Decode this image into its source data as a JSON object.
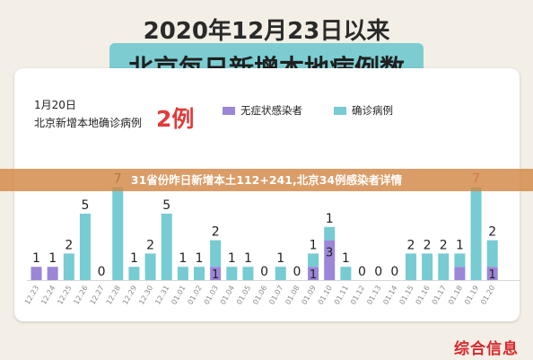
{
  "header": {
    "title_line1": "2020年12月23日以来",
    "title_line2": "北京每日新增本地病例数"
  },
  "info": {
    "date": "1月20日",
    "label": "北京新增本地确诊病例",
    "count": "2例"
  },
  "legend": {
    "asymptomatic": "无症状感染者",
    "confirmed": "确诊病例"
  },
  "colors": {
    "asymptomatic": "#9b86d8",
    "confirmed": "#77cbd2",
    "highlight": "#e23a3a",
    "overlay": "#d38746"
  },
  "overlay_headline": "31省份昨日新增本土112+241,北京34例感染者详情",
  "watermark": "综合信息",
  "chart_data": {
    "type": "bar",
    "stacked": true,
    "categories": [
      "12.23",
      "12.24",
      "12.25",
      "12.26",
      "12.27",
      "12.28",
      "12.29",
      "12.30",
      "12.31",
      "01.01",
      "01.02",
      "01.03",
      "01.04",
      "01.05",
      "01.06",
      "01.07",
      "01.08",
      "01.09",
      "01.10",
      "01.11",
      "01.12",
      "01.13",
      "01.14",
      "01.15",
      "01.16",
      "01.17",
      "01.18",
      "01.19",
      "01.20"
    ],
    "series": [
      {
        "name": "无症状感染者",
        "values": [
          1,
          1,
          0,
          0,
          0,
          0,
          0,
          0,
          0,
          0,
          0,
          1,
          0,
          0,
          0,
          0,
          0,
          1,
          3,
          0,
          0,
          0,
          0,
          0,
          0,
          0,
          1,
          0,
          1
        ]
      },
      {
        "name": "确诊病例",
        "values": [
          0,
          0,
          2,
          5,
          0,
          7,
          1,
          2,
          5,
          1,
          1,
          2,
          1,
          1,
          0,
          1,
          0,
          1,
          1,
          1,
          0,
          0,
          0,
          2,
          2,
          2,
          1,
          7,
          2
        ]
      }
    ],
    "bar_labels": [
      "1",
      "1",
      "2",
      "5",
      "0",
      "7",
      "1",
      "2",
      "5",
      "1",
      "1",
      "2",
      "1",
      "1",
      "0",
      "1",
      "0",
      "1",
      "1",
      "1",
      "0",
      "0",
      "0",
      "2",
      "2",
      "2",
      "1",
      "7",
      "2"
    ],
    "stack_inner_labels": [
      "",
      "",
      "",
      "",
      "",
      "",
      "",
      "",
      "",
      "",
      "",
      "1",
      "",
      "",
      "",
      "",
      "",
      "1",
      "3",
      "",
      "",
      "",
      "",
      "",
      "",
      "",
      "",
      "",
      "1"
    ],
    "highlight_index": 27,
    "grid": false,
    "legend_position": "top"
  }
}
